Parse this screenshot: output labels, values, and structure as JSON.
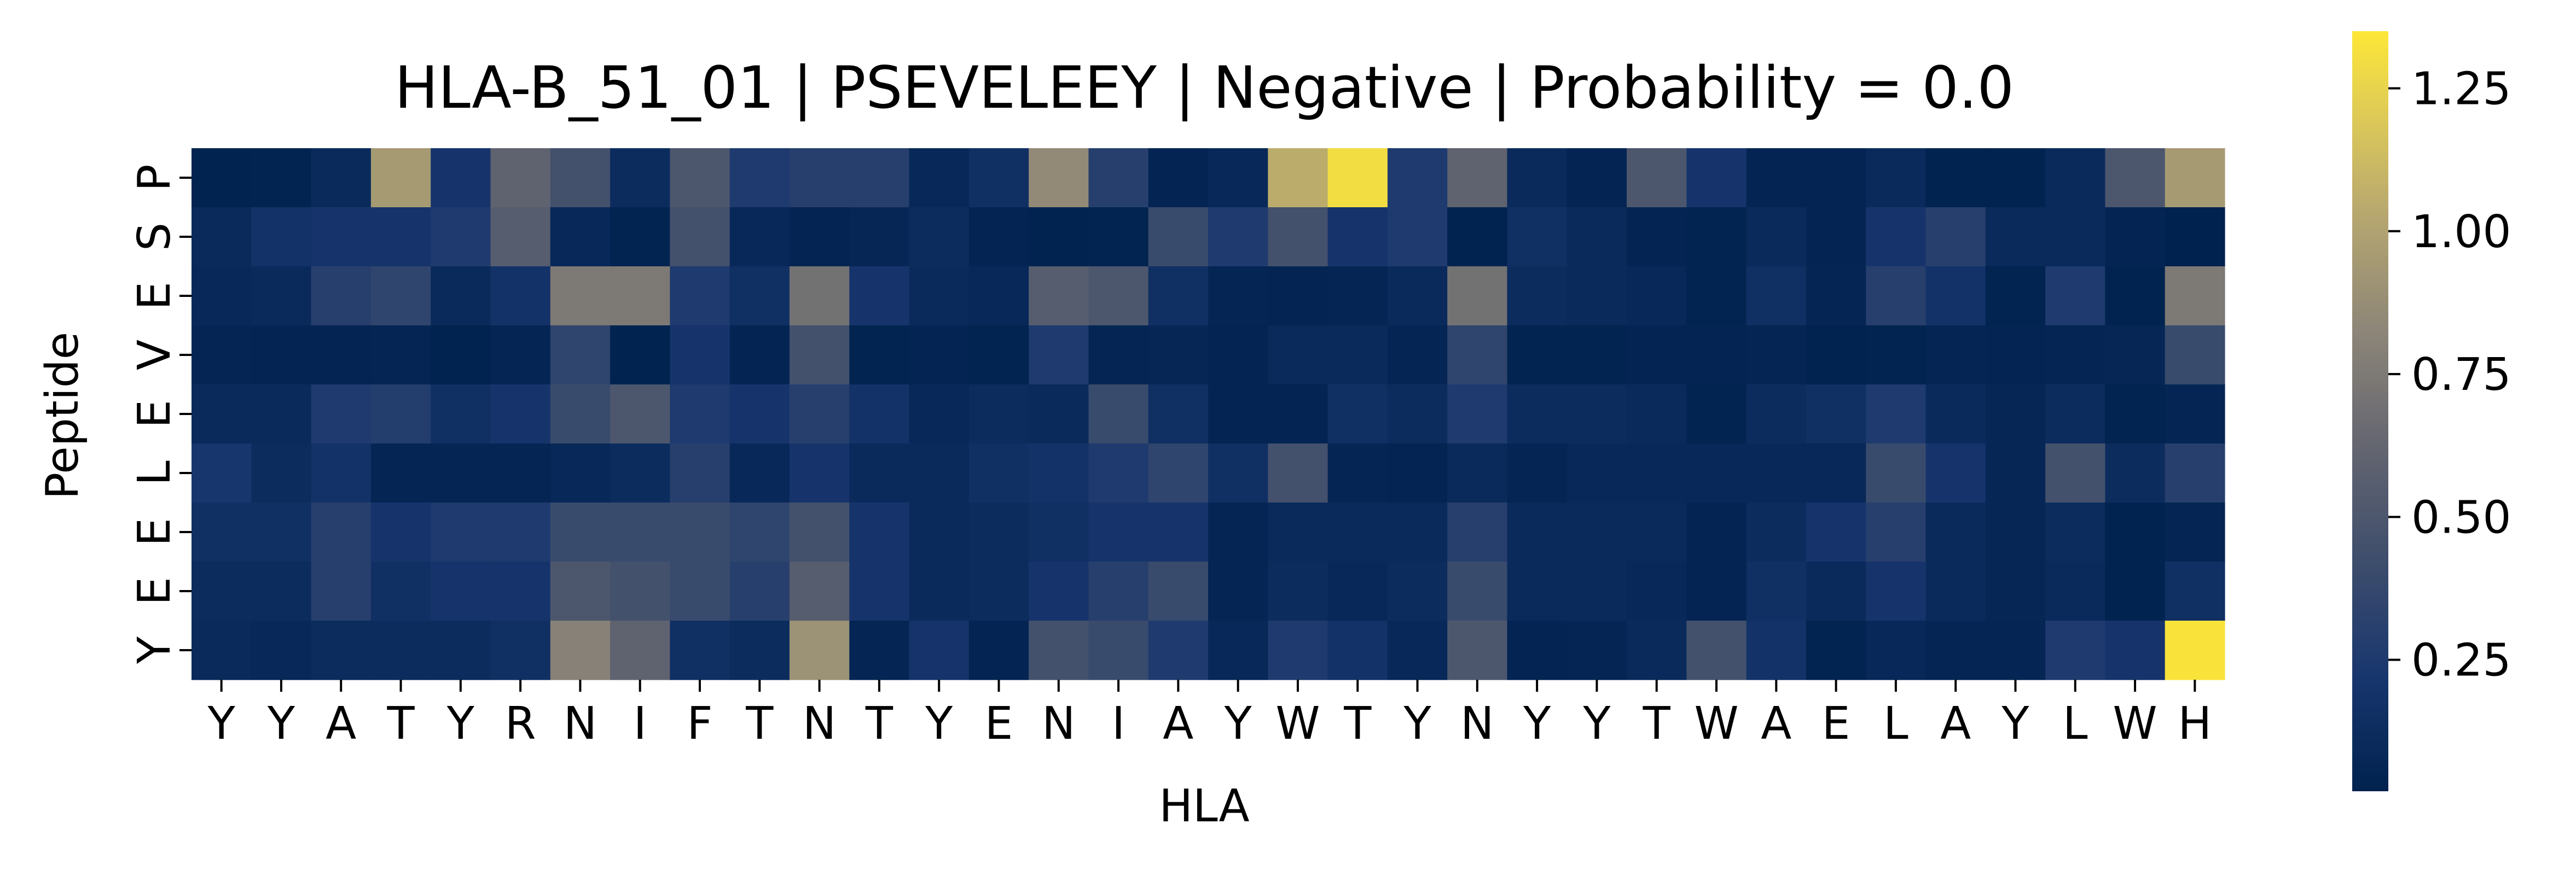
{
  "chart_data": {
    "type": "heatmap",
    "title": "HLA-B_51_01 | PSEVELEEY | Negative | Probability = 0.0",
    "xlabel": "HLA",
    "ylabel": "Peptide",
    "x_tick_labels": [
      "Y",
      "Y",
      "A",
      "T",
      "Y",
      "R",
      "N",
      "I",
      "F",
      "T",
      "N",
      "T",
      "Y",
      "E",
      "N",
      "I",
      "A",
      "Y",
      "W",
      "T",
      "Y",
      "N",
      "Y",
      "Y",
      "T",
      "W",
      "A",
      "E",
      "L",
      "A",
      "Y",
      "L",
      "W",
      "H"
    ],
    "y_tick_labels": [
      "P",
      "S",
      "E",
      "V",
      "E",
      "L",
      "E",
      "E",
      "Y"
    ],
    "colormap": "cividis",
    "colorbar": {
      "range": [
        0.02,
        1.35
      ],
      "ticks": [
        0.25,
        0.5,
        0.75,
        1.0,
        1.25
      ],
      "tick_labels": [
        "0.25",
        "0.50",
        "0.75",
        "1.00",
        "1.25"
      ]
    },
    "values": [
      [
        0.03,
        0.04,
        0.1,
        0.95,
        0.2,
        0.6,
        0.45,
        0.12,
        0.5,
        0.25,
        0.3,
        0.3,
        0.08,
        0.15,
        0.85,
        0.3,
        0.05,
        0.08,
        1.05,
        1.3,
        0.25,
        0.6,
        0.1,
        0.05,
        0.5,
        0.2,
        0.05,
        0.05,
        0.1,
        0.03,
        0.03,
        0.1,
        0.5,
        0.95
      ],
      [
        0.1,
        0.18,
        0.2,
        0.2,
        0.25,
        0.55,
        0.08,
        0.04,
        0.45,
        0.08,
        0.05,
        0.07,
        0.12,
        0.05,
        0.03,
        0.04,
        0.4,
        0.25,
        0.45,
        0.2,
        0.25,
        0.03,
        0.15,
        0.1,
        0.05,
        0.04,
        0.1,
        0.05,
        0.2,
        0.3,
        0.1,
        0.1,
        0.05,
        0.02
      ],
      [
        0.08,
        0.1,
        0.3,
        0.35,
        0.1,
        0.18,
        0.75,
        0.75,
        0.25,
        0.15,
        0.7,
        0.2,
        0.1,
        0.08,
        0.55,
        0.5,
        0.15,
        0.06,
        0.05,
        0.06,
        0.1,
        0.7,
        0.12,
        0.1,
        0.08,
        0.04,
        0.15,
        0.06,
        0.3,
        0.18,
        0.04,
        0.25,
        0.03,
        0.75
      ],
      [
        0.06,
        0.05,
        0.05,
        0.06,
        0.03,
        0.06,
        0.35,
        0.03,
        0.2,
        0.05,
        0.45,
        0.04,
        0.05,
        0.04,
        0.25,
        0.06,
        0.07,
        0.05,
        0.1,
        0.1,
        0.06,
        0.35,
        0.04,
        0.04,
        0.05,
        0.05,
        0.06,
        0.03,
        0.04,
        0.06,
        0.05,
        0.06,
        0.07,
        0.4
      ],
      [
        0.1,
        0.1,
        0.25,
        0.28,
        0.15,
        0.2,
        0.4,
        0.5,
        0.25,
        0.2,
        0.3,
        0.18,
        0.08,
        0.12,
        0.1,
        0.4,
        0.15,
        0.05,
        0.05,
        0.15,
        0.12,
        0.25,
        0.12,
        0.12,
        0.1,
        0.04,
        0.12,
        0.15,
        0.25,
        0.1,
        0.07,
        0.12,
        0.04,
        0.06
      ],
      [
        0.22,
        0.12,
        0.18,
        0.06,
        0.06,
        0.06,
        0.08,
        0.12,
        0.3,
        0.08,
        0.2,
        0.1,
        0.1,
        0.15,
        0.18,
        0.25,
        0.35,
        0.15,
        0.45,
        0.06,
        0.05,
        0.1,
        0.06,
        0.08,
        0.08,
        0.08,
        0.08,
        0.08,
        0.4,
        0.2,
        0.07,
        0.45,
        0.12,
        0.3
      ],
      [
        0.15,
        0.15,
        0.3,
        0.2,
        0.25,
        0.25,
        0.4,
        0.4,
        0.4,
        0.35,
        0.45,
        0.2,
        0.1,
        0.12,
        0.15,
        0.2,
        0.2,
        0.06,
        0.1,
        0.1,
        0.1,
        0.3,
        0.1,
        0.1,
        0.1,
        0.05,
        0.12,
        0.2,
        0.3,
        0.1,
        0.07,
        0.12,
        0.03,
        0.06
      ],
      [
        0.12,
        0.12,
        0.3,
        0.15,
        0.2,
        0.2,
        0.5,
        0.45,
        0.4,
        0.3,
        0.55,
        0.2,
        0.1,
        0.12,
        0.2,
        0.3,
        0.4,
        0.06,
        0.12,
        0.08,
        0.12,
        0.4,
        0.1,
        0.1,
        0.08,
        0.05,
        0.15,
        0.1,
        0.2,
        0.1,
        0.07,
        0.1,
        0.03,
        0.15
      ],
      [
        0.1,
        0.08,
        0.12,
        0.12,
        0.12,
        0.15,
        0.8,
        0.6,
        0.15,
        0.12,
        0.9,
        0.06,
        0.2,
        0.05,
        0.45,
        0.4,
        0.25,
        0.08,
        0.25,
        0.18,
        0.08,
        0.5,
        0.05,
        0.06,
        0.1,
        0.45,
        0.18,
        0.04,
        0.08,
        0.06,
        0.06,
        0.25,
        0.2,
        1.33
      ]
    ]
  }
}
